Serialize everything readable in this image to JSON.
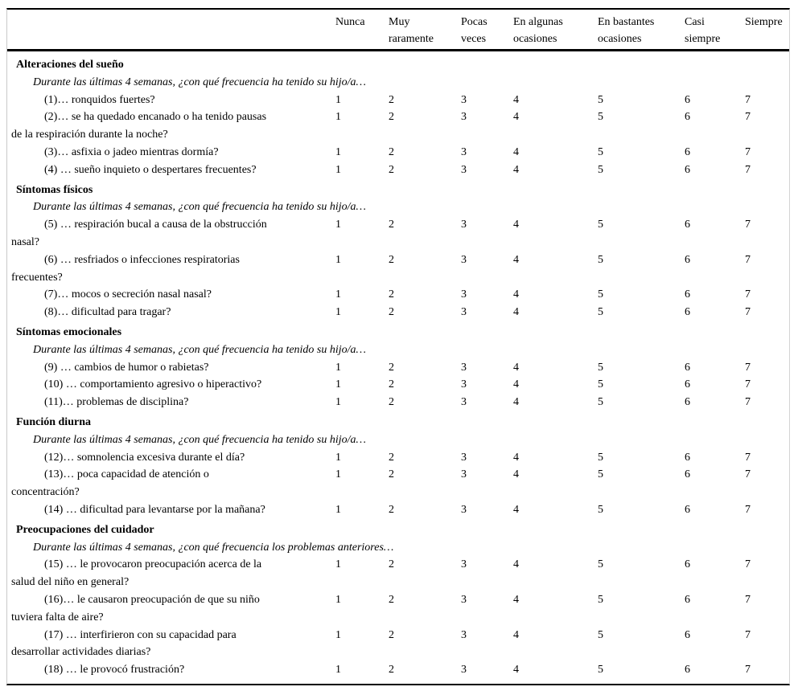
{
  "page": {
    "background": "#ffffff",
    "rule_color": "#000000",
    "frame_border_color": "#c9c9c9"
  },
  "header": {
    "columns": [
      {
        "label": "Nunca"
      },
      {
        "label": "Muy\nraramente"
      },
      {
        "label": "Pocas\nveces"
      },
      {
        "label": "En algunas\nocasiones"
      },
      {
        "label": "En bastantes\nocasiones"
      },
      {
        "label": "Casi\nsiempre"
      },
      {
        "label": "Siempre"
      }
    ]
  },
  "scale_range": [
    "1",
    "2",
    "3",
    "4",
    "5",
    "6",
    "7"
  ],
  "sections": [
    {
      "title": "Alteraciones del sueño",
      "instruction": "Durante las últimas 4 semanas, ¿con qué frecuencia ha tenido su hijo/a…",
      "items": [
        {
          "label": "(1)… ronquidos fuertes?",
          "ratings": [
            "1",
            "2",
            "3",
            "4",
            "5",
            "6",
            "7"
          ]
        },
        {
          "label": "(2)… se ha quedado encanado o ha tenido pausas\nde la respiración durante la noche?",
          "ratings": [
            "1",
            "2",
            "3",
            "4",
            "5",
            "6",
            "7"
          ]
        },
        {
          "label": "(3)… asfixia o jadeo mientras dormía?",
          "ratings": [
            "1",
            "2",
            "3",
            "4",
            "5",
            "6",
            "7"
          ]
        },
        {
          "label": "(4) … sueño inquieto o despertares frecuentes?",
          "ratings": [
            "1",
            "2",
            "3",
            "4",
            "5",
            "6",
            "7"
          ]
        }
      ]
    },
    {
      "title": "Síntomas físicos",
      "instruction": "Durante las últimas 4 semanas, ¿con qué frecuencia ha tenido su hijo/a…",
      "items": [
        {
          "label": "(5) … respiración bucal a causa de la obstrucción\nnasal?",
          "ratings": [
            "1",
            "2",
            "3",
            "4",
            "5",
            "6",
            "7"
          ]
        },
        {
          "label": "(6) … resfriados o infecciones respiratorias\nfrecuentes?",
          "ratings": [
            "1",
            "2",
            "3",
            "4",
            "5",
            "6",
            "7"
          ]
        },
        {
          "label": "(7)… mocos o secreción nasal nasal?",
          "ratings": [
            "1",
            "2",
            "3",
            "4",
            "5",
            "6",
            "7"
          ]
        },
        {
          "label": "(8)… dificultad para tragar?",
          "ratings": [
            "1",
            "2",
            "3",
            "4",
            "5",
            "6",
            "7"
          ]
        }
      ]
    },
    {
      "title": "Síntomas emocionales",
      "instruction": "Durante las últimas 4 semanas, ¿con qué frecuencia ha tenido su hijo/a…",
      "items": [
        {
          "label": "(9) … cambios de humor o rabietas?",
          "ratings": [
            "1",
            "2",
            "3",
            "4",
            "5",
            "6",
            "7"
          ]
        },
        {
          "label": "(10) … comportamiento agresivo o hiperactivo?",
          "ratings": [
            "1",
            "2",
            "3",
            "4",
            "5",
            "6",
            "7"
          ]
        },
        {
          "label": "(11)… problemas de disciplina?",
          "ratings": [
            "1",
            "2",
            "3",
            "4",
            "5",
            "6",
            "7"
          ]
        }
      ]
    },
    {
      "title": "Función diurna",
      "instruction": "Durante las últimas 4 semanas, ¿con qué frecuencia ha tenido su hijo/a…",
      "items": [
        {
          "label": "(12)… somnolencia excesiva durante el día?",
          "ratings": [
            "1",
            "2",
            "3",
            "4",
            "5",
            "6",
            "7"
          ]
        },
        {
          "label": "(13)… poca capacidad de atención o\nconcentración?",
          "ratings": [
            "1",
            "2",
            "3",
            "4",
            "5",
            "6",
            "7"
          ]
        },
        {
          "label": "(14) … dificultad para levantarse por la mañana?",
          "ratings": [
            "1",
            "2",
            "3",
            "4",
            "5",
            "6",
            "7"
          ]
        }
      ]
    },
    {
      "title": "Preocupaciones del cuidador",
      "instruction": "Durante las últimas 4 semanas, ¿con qué frecuencia los problemas anteriores…",
      "items": [
        {
          "label": "(15) … le provocaron preocupación acerca de la\nsalud del niño en general?",
          "ratings": [
            "1",
            "2",
            "3",
            "4",
            "5",
            "6",
            "7"
          ]
        },
        {
          "label": "(16)… le causaron preocupación de que su niño\ntuviera falta de aire?",
          "ratings": [
            "1",
            "2",
            "3",
            "4",
            "5",
            "6",
            "7"
          ]
        },
        {
          "label": "(17) … interfirieron con su capacidad para\ndesarrollar actividades diarias?",
          "ratings": [
            "1",
            "2",
            "3",
            "4",
            "5",
            "6",
            "7"
          ]
        },
        {
          "label": "(18) … le provocó frustración?",
          "ratings": [
            "1",
            "2",
            "3",
            "4",
            "5",
            "6",
            "7"
          ]
        }
      ]
    }
  ]
}
